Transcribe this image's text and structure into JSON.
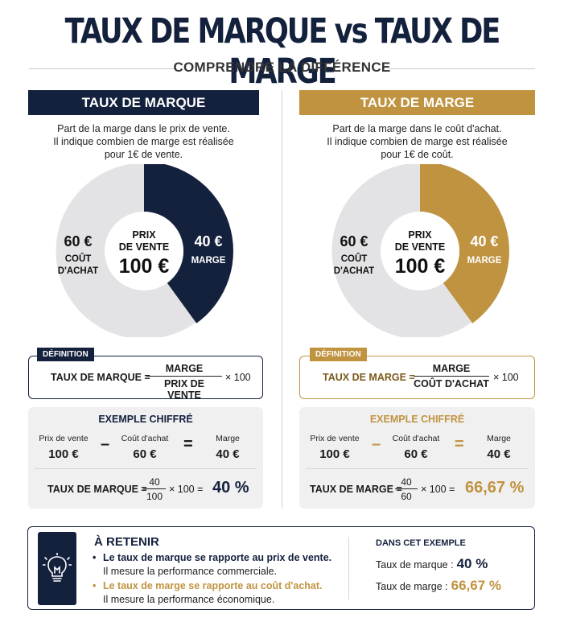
{
  "title": "TAUX DE MARQUE vs TAUX DE MARGE",
  "subtitle": "COMPRENDRE LA DIFFÉRENCE",
  "colors": {
    "navy": "#14213d",
    "gold": "#c09340",
    "grey": "#e3e3e5"
  },
  "left": {
    "header": "TAUX DE MARQUE",
    "desc_lines": [
      "Part de la marge dans le prix de vente.",
      "Il indique combien de marge est réalisée",
      "pour 1€ de vente."
    ],
    "donut": {
      "center_small_1": "PRIX",
      "center_small_2": "DE VENTE",
      "center_big": "100 €",
      "left_value": "60 €",
      "left_label_1": "COÛT",
      "left_label_2": "D'ACHAT",
      "right_value": "40 €",
      "right_label": "MARGE",
      "fraction": 0.4
    },
    "def_tag": "DÉFINITION",
    "formula": {
      "term": "TAUX DE MARQUE =",
      "num": "MARGE",
      "den": "PRIX DE VENTE",
      "mul": "× 100"
    },
    "example": {
      "title": "EXEMPLE CHIFFRÉ",
      "a_label": "Prix de vente",
      "a_value": "100 €",
      "op1": "–",
      "b_label": "Coût d'achat",
      "b_value": "60 €",
      "op2": "=",
      "c_label": "Marge",
      "c_value": "40 €",
      "f_term": "TAUX DE MARQUE =",
      "f_num": "40",
      "f_den": "100",
      "f_mul": "× 100 =",
      "f_res": "40 %"
    }
  },
  "right": {
    "header": "TAUX DE MARGE",
    "desc_lines": [
      "Part de la marge dans le coût d'achat.",
      "Il indique combien de marge est réalisée",
      "pour 1€ de coût."
    ],
    "donut": {
      "center_small_1": "PRIX",
      "center_small_2": "DE VENTE",
      "center_big": "100 €",
      "left_value": "60 €",
      "left_label_1": "COÛT",
      "left_label_2": "D'ACHAT",
      "right_value": "40 €",
      "right_label": "MARGE",
      "fraction": 0.4
    },
    "def_tag": "DÉFINITION",
    "formula": {
      "term": "TAUX DE MARGE =",
      "num": "MARGE",
      "den": "COÛT D'ACHAT",
      "mul": "× 100"
    },
    "example": {
      "title": "EXEMPLE CHIFFRÉ",
      "a_label": "Prix de vente",
      "a_value": "100 €",
      "op1": "–",
      "b_label": "Coût d'achat",
      "b_value": "60 €",
      "op2": "=",
      "c_label": "Marge",
      "c_value": "40 €",
      "f_term": "TAUX DE MARGE =",
      "f_num": "40",
      "f_den": "60",
      "f_mul": "× 100 =",
      "f_res": "66,67 %"
    }
  },
  "bottom": {
    "icon": "lightbulb-icon",
    "title": "À RETENIR",
    "b1_strong": "Le taux de marque se rapporte au prix de vente.",
    "b1_sub": "Il mesure la performance commerciale.",
    "b2_strong": "Le taux de marge se rapporte au coût d'achat.",
    "b2_sub": "Il mesure la performance économique.",
    "dans_title": "DANS CET EXEMPLE",
    "r1_label": "Taux de marque :",
    "r1_value": "40 %",
    "r2_label": "Taux de marge :",
    "r2_value": "66,67 %"
  }
}
